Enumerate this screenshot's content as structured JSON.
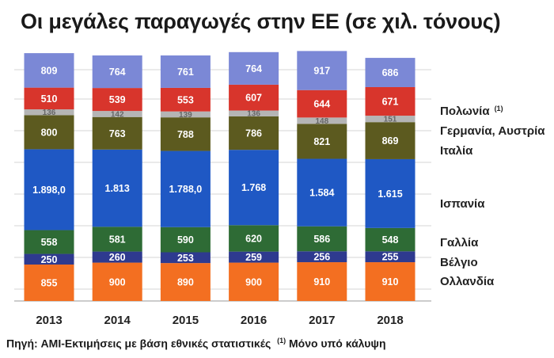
{
  "title": "Οι μεγάλες παραγωγές στην ΕΕ (σε χιλ. τόνους)",
  "source": "Πηγή: AMI-Εκτιμήσεις με βάση εθνικές στατιστικές",
  "footnote_mark": "(1)",
  "footnote_text": "Μόνο υπό κάλυψη",
  "chart_data": {
    "type": "bar",
    "stacked": true,
    "title": "Οι μεγάλες παραγωγές στην ΕΕ (σε χιλ. τόνους)",
    "xlabel": "",
    "ylabel": "",
    "unit": "χιλ. τόνοι",
    "categories": [
      "2013",
      "2014",
      "2015",
      "2016",
      "2017",
      "2018"
    ],
    "series": [
      {
        "name": "Ολλανδία",
        "color": "#f36f21",
        "values": [
          855,
          900,
          890,
          900,
          910,
          910
        ],
        "labels": [
          "855",
          "900",
          "890",
          "900",
          "910",
          "910"
        ]
      },
      {
        "name": "Βέλγιο",
        "color": "#2e3a8f",
        "values": [
          250,
          260,
          253,
          259,
          256,
          255
        ],
        "labels": [
          "250",
          "260",
          "253",
          "259",
          "256",
          "255"
        ]
      },
      {
        "name": "Γαλλία",
        "color": "#2e6b35",
        "values": [
          558,
          581,
          590,
          620,
          586,
          548
        ],
        "labels": [
          "558",
          "581",
          "590",
          "620",
          "586",
          "548"
        ]
      },
      {
        "name": "Ισπανία",
        "color": "#1f58c4",
        "values": [
          1898,
          1813,
          1788,
          1768,
          1584,
          1615
        ],
        "labels": [
          "1.898,0",
          "1.813",
          "1.788,0",
          "1.768",
          "1.584",
          "1.615"
        ]
      },
      {
        "name": "Ιταλία",
        "color": "#5c5a1f",
        "values": [
          800,
          763,
          788,
          786,
          821,
          869
        ],
        "labels": [
          "800",
          "763",
          "788",
          "786",
          "821",
          "869"
        ]
      },
      {
        "name": "Γερμανία, Αυστρία",
        "color": "#b5b5b5",
        "values": [
          136,
          142,
          139,
          136,
          148,
          151
        ],
        "labels": [
          "136",
          "142",
          "139",
          "136",
          "148",
          "151"
        ]
      },
      {
        "name": "Πολωνία",
        "legend_mark": "(1)",
        "color": "#d8352c",
        "values": [
          510,
          539,
          553,
          607,
          644,
          671
        ],
        "labels": [
          "510",
          "539",
          "553",
          "607",
          "644",
          "671"
        ]
      },
      {
        "name": "",
        "color": "#7b88d6",
        "values": [
          809,
          764,
          761,
          764,
          917,
          686
        ],
        "labels": [
          "809",
          "764",
          "761",
          "764",
          "917",
          "686"
        ]
      }
    ]
  }
}
